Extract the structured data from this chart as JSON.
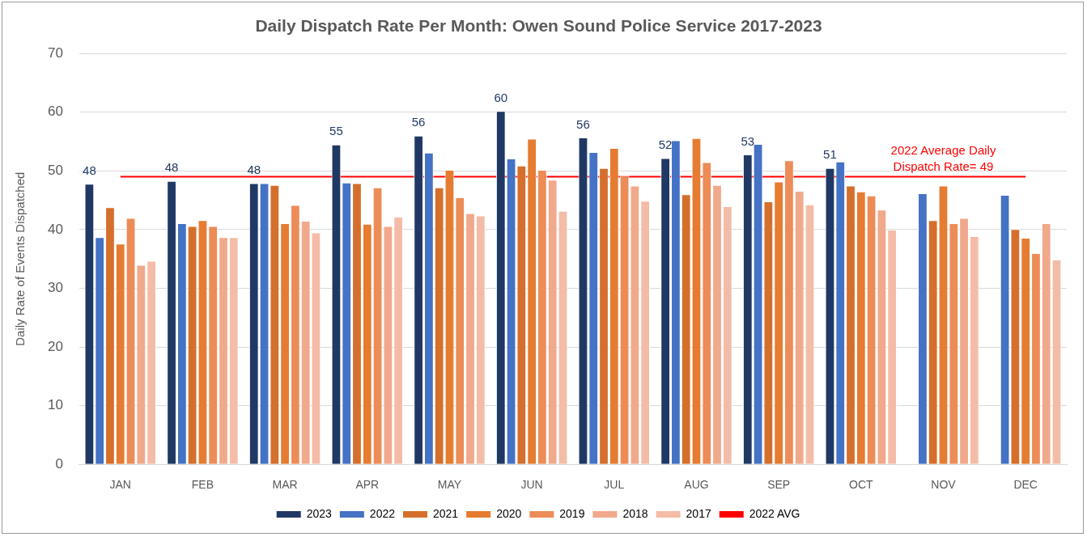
{
  "chart_data": {
    "type": "bar",
    "title": "Daily Dispatch Rate Per Month: Owen Sound Police Service 2017-2023",
    "ylabel": "Daily Rate of Events Dispatched",
    "categories": [
      "JAN",
      "FEB",
      "MAR",
      "APR",
      "MAY",
      "JUN",
      "JUL",
      "AUG",
      "SEP",
      "OCT",
      "NOV",
      "DEC"
    ],
    "series": [
      {
        "name": "2023",
        "color": "#203864",
        "values": [
          47.8,
          48.3,
          47.9,
          54.5,
          56.0,
          60.2,
          55.7,
          52.2,
          52.8,
          50.5,
          null,
          null
        ],
        "value_labels": [
          "48",
          "48",
          "48",
          "55",
          "56",
          "60",
          "56",
          "52",
          "53",
          "51",
          null,
          null
        ]
      },
      {
        "name": "2022",
        "color": "#4472c4",
        "values": [
          38.7,
          41.1,
          47.9,
          48.0,
          53.1,
          52.1,
          53.2,
          55.2,
          54.6,
          51.6,
          46.2,
          45.9
        ]
      },
      {
        "name": "2021",
        "color": "#d46f2c",
        "values": [
          43.8,
          40.6,
          47.6,
          47.9,
          47.2,
          50.9,
          50.5,
          46.0,
          44.8,
          47.5,
          41.6,
          40.1
        ]
      },
      {
        "name": "2020",
        "color": "#e57c31",
        "values": [
          37.6,
          41.6,
          41.1,
          41.0,
          50.2,
          55.5,
          53.9,
          55.6,
          48.2,
          46.5,
          47.5,
          38.6
        ]
      },
      {
        "name": "2019",
        "color": "#ed8c57",
        "values": [
          42.0,
          40.6,
          44.2,
          47.2,
          45.5,
          50.2,
          49.2,
          51.5,
          51.8,
          45.8,
          41.1,
          36.0
        ]
      },
      {
        "name": "2018",
        "color": "#f0a98a",
        "values": [
          34.0,
          38.7,
          41.5,
          40.6,
          42.8,
          48.5,
          47.5,
          47.6,
          46.6,
          43.4,
          42.0,
          41.1
        ]
      },
      {
        "name": "2017",
        "color": "#f4bca6",
        "values": [
          34.7,
          38.7,
          39.5,
          42.2,
          42.4,
          43.2,
          44.9,
          44.0,
          44.3,
          40.0,
          38.9,
          34.9
        ]
      }
    ],
    "ref_lines": [
      {
        "axis": "y",
        "value": 49,
        "label": "2022 AVG",
        "color": "#ff0000"
      }
    ],
    "annotations": [
      {
        "text": "2022 Average Daily Dispatch Rate= 49",
        "x": "NOV",
        "y": 49
      }
    ],
    "ylim": [
      0,
      70
    ],
    "yticks": [
      0,
      10,
      20,
      30,
      40,
      50,
      60,
      70
    ],
    "grid": "y",
    "legend": "bottom"
  }
}
